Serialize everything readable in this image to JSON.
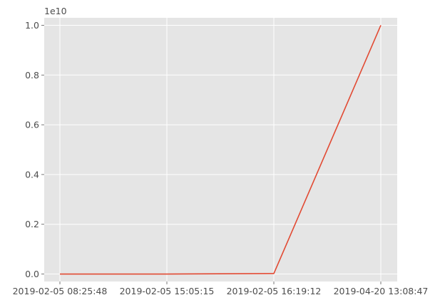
{
  "chart_data": {
    "type": "line",
    "title": "",
    "xlabel": "",
    "ylabel": "",
    "y_offset_label": "1e10",
    "x_tick_labels": [
      "2019-02-05 08:25:48",
      "2019-02-05 15:05:15",
      "2019-02-05 16:19:12",
      "2019-04-20 13:08:47"
    ],
    "y_tick_values": [
      0.0,
      0.2,
      0.4,
      0.6,
      0.8,
      1.0
    ],
    "y_tick_labels": [
      "0.0",
      "0.2",
      "0.4",
      "0.6",
      "0.8",
      "1.0"
    ],
    "ylim": [
      -0.03,
      1.03
    ],
    "grid": true,
    "background": "#e5e5e5",
    "series": [
      {
        "color": "#e24a33",
        "x": [
          "2019-02-05 08:25:48",
          "2019-02-05 15:05:15",
          "2019-02-05 16:19:12",
          "2019-04-20 13:08:47"
        ],
        "values": [
          0.0,
          0.0,
          0.002,
          1.0
        ]
      }
    ]
  }
}
